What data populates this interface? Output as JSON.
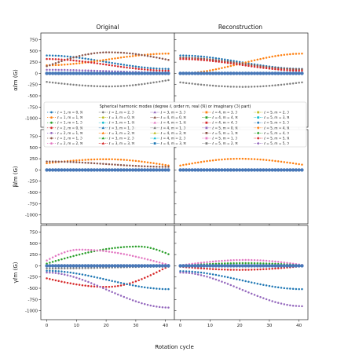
{
  "figure": {
    "column_titles": [
      "Original",
      "Reconstruction"
    ],
    "row_labels": [
      "αℓm (G)",
      "βℓm (G)",
      "γℓm (G)"
    ],
    "xlabel": "Rotation cycle",
    "legend_title": "Spherical harmonic modes (degree ℓ, order m, real (ℜ) or imaginary (ℑ) part)"
  },
  "chart_data": {
    "type": "scatter",
    "layout": "3 rows x 2 columns, shared x and y per row",
    "xlabel": "Rotation cycle",
    "xlim": [
      -2,
      43
    ],
    "xticks": [
      0,
      10,
      20,
      30,
      40
    ],
    "ylim": [
      -1200,
      900
    ],
    "yticks": [
      750,
      500,
      250,
      0,
      -250,
      -500,
      -750,
      -1000
    ],
    "x": [
      0,
      1,
      2,
      3,
      4,
      5,
      6,
      7,
      8,
      9,
      10,
      11,
      12,
      13,
      14,
      15,
      16,
      17,
      18,
      19,
      20,
      21,
      22,
      23,
      24,
      25,
      26,
      27,
      28,
      29,
      30,
      31,
      32,
      33,
      34,
      35,
      36,
      37,
      38,
      39,
      40,
      41
    ],
    "legend": {
      "title": "Spherical harmonic modes (degree ℓ, order m, real (ℜ) or imaginary (ℑ) part)",
      "placement": "inside top-left of first row, spanning both columns",
      "entries": [
        {
          "label": "ℓ = 1, m = 0, ℜ",
          "color": "#1f77b4",
          "marker": "o"
        },
        {
          "label": "ℓ = 1, m = 1, ℜ",
          "color": "#ff7f0e",
          "marker": "o"
        },
        {
          "label": "ℓ = 1, m = 1, ℑ",
          "color": "#2ca02c",
          "marker": "o"
        },
        {
          "label": "ℓ = 2, m = 0, ℜ",
          "color": "#d62728",
          "marker": "o"
        },
        {
          "label": "ℓ = 2, m = 1, ℜ",
          "color": "#9467bd",
          "marker": "o"
        },
        {
          "label": "ℓ = 2, m = 1, ℑ",
          "color": "#8c564b",
          "marker": "o"
        },
        {
          "label": "ℓ = 2, m = 2, ℜ",
          "color": "#e377c2",
          "marker": "o"
        },
        {
          "label": "ℓ = 2, m = 2, ℑ",
          "color": "#7f7f7f",
          "marker": "o"
        },
        {
          "label": "ℓ = 3, m = 0, ℜ",
          "color": "#bcbd22",
          "marker": "o"
        },
        {
          "label": "ℓ = 3, m = 1, ℜ",
          "color": "#17becf",
          "marker": "o"
        },
        {
          "label": "ℓ = 3, m = 1, ℑ",
          "color": "#1f77b4",
          "marker": "^"
        },
        {
          "label": "ℓ = 3, m = 2, ℜ",
          "color": "#ff7f0e",
          "marker": "^"
        },
        {
          "label": "ℓ = 3, m = 2, ℑ",
          "color": "#2ca02c",
          "marker": "^"
        },
        {
          "label": "ℓ = 3, m = 3, ℜ",
          "color": "#d62728",
          "marker": "^"
        },
        {
          "label": "ℓ = 3, m = 3, ℑ",
          "color": "#9467bd",
          "marker": "^"
        },
        {
          "label": "ℓ = 4, m = 0, ℜ",
          "color": "#8c564b",
          "marker": "^"
        },
        {
          "label": "ℓ = 4, m = 1, ℜ",
          "color": "#e377c2",
          "marker": "^"
        },
        {
          "label": "ℓ = 4, m = 1, ℑ",
          "color": "#7f7f7f",
          "marker": "^"
        },
        {
          "label": "ℓ = 4, m = 2, ℜ",
          "color": "#bcbd22",
          "marker": "^"
        },
        {
          "label": "ℓ = 4, m = 2, ℑ",
          "color": "#17becf",
          "marker": "^"
        },
        {
          "label": "ℓ = 4, m = 3, ℜ",
          "color": "#1f77b4",
          "marker": "s"
        },
        {
          "label": "ℓ = 4, m = 3, ℑ",
          "color": "#ff7f0e",
          "marker": "s"
        },
        {
          "label": "ℓ = 4, m = 4, ℜ",
          "color": "#2ca02c",
          "marker": "s"
        },
        {
          "label": "ℓ = 4, m = 4, ℑ",
          "color": "#d62728",
          "marker": "s"
        },
        {
          "label": "ℓ = 5, m = 0, ℜ",
          "color": "#9467bd",
          "marker": "s"
        },
        {
          "label": "ℓ = 5, m = 1, ℜ",
          "color": "#8c564b",
          "marker": "s"
        },
        {
          "label": "ℓ = 5, m = 1, ℑ",
          "color": "#e377c2",
          "marker": "s"
        },
        {
          "label": "ℓ = 5, m = 2, ℜ",
          "color": "#7f7f7f",
          "marker": "s"
        },
        {
          "label": "ℓ = 5, m = 2, ℑ",
          "color": "#bcbd22",
          "marker": "s"
        },
        {
          "label": "ℓ = 5, m = 3, ℜ",
          "color": "#17becf",
          "marker": "s"
        },
        {
          "label": "ℓ = 5, m = 3, ℑ",
          "color": "#1f77b4",
          "marker": "D"
        },
        {
          "label": "ℓ = 5, m = 4, ℜ",
          "color": "#ff7f0e",
          "marker": "D"
        },
        {
          "label": "ℓ = 5, m = 4, ℑ",
          "color": "#2ca02c",
          "marker": "D"
        },
        {
          "label": "ℓ = 5, m = 5, ℜ",
          "color": "#d62728",
          "marker": "D"
        },
        {
          "label": "ℓ = 5, m = 5, ℑ",
          "color": "#9467bd",
          "marker": "D"
        }
      ]
    },
    "panels": [
      {
        "row": 0,
        "col": 0,
        "column_title": "Original",
        "ylabel": "αℓm (G)",
        "series": [
          {
            "color": "#1f77b4",
            "start": 400,
            "peak": 400,
            "peak_at": 0,
            "end": 100
          },
          {
            "color": "#ff7f0e",
            "start": 180,
            "peak": 440,
            "peak_at": 41,
            "end": 440
          },
          {
            "color": "#8c564b",
            "start": 160,
            "peak": 470,
            "peak_at": 21,
            "end": 300
          },
          {
            "color": "#d62728",
            "start": 320,
            "peak": 320,
            "peak_at": 0,
            "end": 60
          },
          {
            "color": "#7f7f7f",
            "start": -190,
            "peak": -290,
            "peak_at": 21,
            "end": -150
          },
          {
            "color": "#9467bd",
            "start": 80,
            "peak": 80,
            "peak_at": 0,
            "end": 20
          },
          {
            "color": "#4878b8",
            "start": 0,
            "peak": 0,
            "peak_at": 0,
            "end": 0,
            "note": "many modes near zero"
          }
        ]
      },
      {
        "row": 0,
        "col": 1,
        "column_title": "Reconstruction",
        "ylabel": "αℓm (G)",
        "series": [
          {
            "color": "#1f77b4",
            "start": 400,
            "peak": 400,
            "peak_at": 0,
            "end": 100
          },
          {
            "color": "#ff7f0e",
            "start": 0,
            "peak": 440,
            "peak_at": 41,
            "end": 440
          },
          {
            "color": "#8c564b",
            "start": 350,
            "peak": 350,
            "peak_at": 0,
            "end": 90
          },
          {
            "color": "#d62728",
            "start": 320,
            "peak": 320,
            "peak_at": 0,
            "end": 60
          },
          {
            "color": "#7f7f7f",
            "start": -200,
            "peak": -300,
            "peak_at": 21,
            "end": -200
          },
          {
            "color": "#4878b8",
            "start": 0,
            "peak": 0,
            "peak_at": 0,
            "end": 0
          }
        ]
      },
      {
        "row": 1,
        "col": 0,
        "column_title": "",
        "ylabel": "βℓm (G)",
        "series": [
          {
            "color": "#ff7f0e",
            "start": 150,
            "peak": 240,
            "peak_at": 20,
            "end": 100
          },
          {
            "color": "#8c564b",
            "start": 190,
            "peak": 190,
            "peak_at": 0,
            "end": 70
          },
          {
            "color": "#4878b8",
            "start": 0,
            "peak": 0,
            "peak_at": 0,
            "end": 0
          }
        ]
      },
      {
        "row": 1,
        "col": 1,
        "column_title": "",
        "ylabel": "βℓm (G)",
        "series": [
          {
            "color": "#ff7f0e",
            "start": 100,
            "peak": 250,
            "peak_at": 20,
            "end": 120
          },
          {
            "color": "#4878b8",
            "start": 0,
            "peak": 0,
            "peak_at": 0,
            "end": 0
          }
        ]
      },
      {
        "row": 2,
        "col": 0,
        "column_title": "",
        "ylabel": "γℓm (G)",
        "series": [
          {
            "color": "#2ca02c",
            "start": 50,
            "peak": 430,
            "peak_at": 31,
            "end": 260
          },
          {
            "color": "#e377c2",
            "start": 120,
            "peak": 360,
            "peak_at": 11,
            "end": 20
          },
          {
            "color": "#d62728",
            "start": -280,
            "peak": -470,
            "peak_at": 20,
            "end": -10
          },
          {
            "color": "#1f77b4",
            "start": -110,
            "peak": -110,
            "peak_at": 0,
            "end": -520
          },
          {
            "color": "#9467bd",
            "start": -150,
            "peak": -150,
            "peak_at": 0,
            "end": -930
          },
          {
            "color": "#7f7f7f",
            "start": -60,
            "peak": -60,
            "peak_at": 0,
            "end": -20
          },
          {
            "color": "#4878b8",
            "start": 0,
            "peak": 0,
            "peak_at": 0,
            "end": 0
          }
        ]
      },
      {
        "row": 2,
        "col": 1,
        "column_title": "",
        "ylabel": "γℓm (G)",
        "series": [
          {
            "color": "#e377c2",
            "start": 10,
            "peak": 130,
            "peak_at": 22,
            "end": 20
          },
          {
            "color": "#2ca02c",
            "start": 0,
            "peak": 60,
            "peak_at": 22,
            "end": 10
          },
          {
            "color": "#d62728",
            "start": -20,
            "peak": -90,
            "peak_at": 20,
            "end": -10
          },
          {
            "color": "#1f77b4",
            "start": -120,
            "peak": -120,
            "peak_at": 0,
            "end": -520
          },
          {
            "color": "#9467bd",
            "start": -150,
            "peak": -150,
            "peak_at": 0,
            "end": -900
          },
          {
            "color": "#4878b8",
            "start": 0,
            "peak": 0,
            "peak_at": 0,
            "end": 0
          }
        ]
      }
    ]
  }
}
